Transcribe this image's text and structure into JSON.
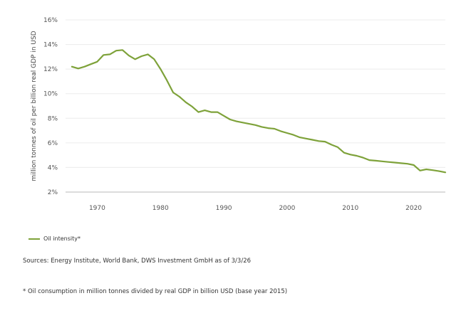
{
  "chart_data": {
    "type": "line",
    "title": "",
    "xlabel": "",
    "ylabel": "million tonnes of oil per billion real GDP in USD",
    "xlim": [
      1965,
      2025
    ],
    "ylim": [
      2,
      16
    ],
    "x_ticks": [
      1970,
      1980,
      1990,
      2000,
      2010,
      2020
    ],
    "y_ticks": [
      2,
      4,
      6,
      8,
      10,
      12,
      14,
      16
    ],
    "y_tick_labels": [
      "2%",
      "4%",
      "6%",
      "8%",
      "10%",
      "12%",
      "14%",
      "16%"
    ],
    "grid": true,
    "legend_position": "bottom-left",
    "series_color": "#7ea23a",
    "series": [
      {
        "name": "Oil intensity*",
        "x": [
          1966,
          1967,
          1968,
          1969,
          1970,
          1971,
          1972,
          1973,
          1974,
          1975,
          1976,
          1977,
          1978,
          1979,
          1980,
          1981,
          1982,
          1983,
          1984,
          1985,
          1986,
          1987,
          1988,
          1989,
          1990,
          1991,
          1992,
          1993,
          1994,
          1995,
          1996,
          1997,
          1998,
          1999,
          2000,
          2001,
          2002,
          2003,
          2004,
          2005,
          2006,
          2007,
          2008,
          2009,
          2010,
          2011,
          2012,
          2013,
          2014,
          2015,
          2016,
          2017,
          2018,
          2019,
          2020,
          2021,
          2022,
          2023,
          2024,
          2025
        ],
        "values": [
          12.2,
          12.05,
          12.2,
          12.4,
          12.6,
          13.15,
          13.2,
          13.5,
          13.55,
          13.1,
          12.8,
          13.05,
          13.2,
          12.8,
          12.0,
          11.1,
          10.1,
          9.75,
          9.3,
          8.95,
          8.5,
          8.65,
          8.5,
          8.5,
          8.2,
          7.9,
          7.75,
          7.65,
          7.55,
          7.45,
          7.3,
          7.2,
          7.15,
          6.95,
          6.8,
          6.65,
          6.45,
          6.35,
          6.25,
          6.15,
          6.1,
          5.85,
          5.65,
          5.2,
          5.05,
          4.95,
          4.8,
          4.6,
          4.55,
          4.5,
          4.45,
          4.4,
          4.35,
          4.3,
          4.2,
          3.75,
          3.85,
          3.78,
          3.7,
          3.6
        ]
      }
    ]
  },
  "legend": {
    "label": "Oil intensity*"
  },
  "notes": {
    "sources": "Sources: Energy Institute, World Bank, DWS Investment GmbH as of 3/3/26",
    "footnote": "* Oil consumption in million tonnes divided by real GDP in billion USD (base year 2015)"
  }
}
